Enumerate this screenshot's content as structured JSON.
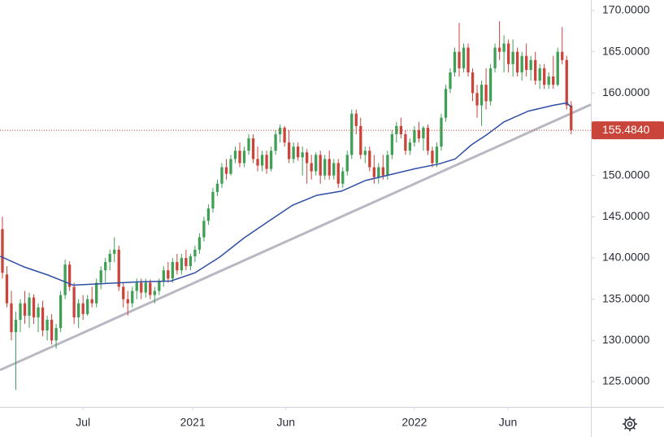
{
  "chart_data": {
    "type": "candlestick",
    "ylim": [
      121.94,
      171.28
    ],
    "xlim": [
      -0.54,
      131.4
    ],
    "yticks": [
      {
        "value": 125,
        "label": "125.0000"
      },
      {
        "value": 130,
        "label": "130.0000"
      },
      {
        "value": 135,
        "label": "135.0000"
      },
      {
        "value": 140,
        "label": "140.0000"
      },
      {
        "value": 145,
        "label": "145.0000"
      },
      {
        "value": 150,
        "label": "150.0000"
      },
      {
        "value": 155,
        "label": "155.0000"
      },
      {
        "value": 160,
        "label": "160.0000"
      },
      {
        "value": 165,
        "label": "165.0000"
      },
      {
        "value": 170,
        "label": "170.0000"
      }
    ],
    "xticks": [
      {
        "value": 18,
        "label": "Jul"
      },
      {
        "value": 42.5,
        "label": "2021"
      },
      {
        "value": 63.3,
        "label": "Jun"
      },
      {
        "value": 92,
        "label": "2022"
      },
      {
        "value": 112.9,
        "label": "Jun"
      }
    ],
    "up_color": "#3f9f55",
    "down_color": "#c9443a",
    "candles": [
      [
        143.5,
        145,
        137.5,
        138.2
      ],
      [
        138,
        139,
        134,
        134.5
      ],
      [
        134.5,
        136,
        130,
        131
      ],
      [
        131,
        133.5,
        124,
        132.5
      ],
      [
        132.5,
        135,
        131,
        134.5
      ],
      [
        134.5,
        136,
        132,
        133
      ],
      [
        133,
        135.8,
        131.5,
        135.2
      ],
      [
        135.2,
        135.6,
        132,
        132.8
      ],
      [
        132.8,
        134.5,
        131,
        134
      ],
      [
        134,
        134.8,
        130.5,
        131.2
      ],
      [
        131.2,
        133,
        130,
        132.5
      ],
      [
        132.5,
        133.2,
        129.5,
        130
      ],
      [
        130,
        132,
        129,
        131.5
      ],
      [
        131.5,
        136,
        131,
        135.5
      ],
      [
        135.5,
        139.8,
        135,
        139.2
      ],
      [
        139.2,
        139.6,
        136,
        136.5
      ],
      [
        136.5,
        137,
        132,
        132.8
      ],
      [
        132.8,
        135,
        131.5,
        134.5
      ],
      [
        134.5,
        135.5,
        132.5,
        133.2
      ],
      [
        133.2,
        135.5,
        133,
        135
      ],
      [
        135,
        136.5,
        134,
        134.5
      ],
      [
        134.5,
        137.5,
        134,
        137
      ],
      [
        137,
        139,
        136.2,
        138.5
      ],
      [
        138.5,
        140,
        137,
        139.5
      ],
      [
        139.5,
        141,
        138.5,
        140.5
      ],
      [
        140.5,
        142.5,
        139.5,
        141
      ],
      [
        141,
        141.5,
        136,
        136.5
      ],
      [
        136.5,
        137,
        134,
        135
      ],
      [
        135,
        136,
        133,
        134.5
      ],
      [
        134.5,
        136.5,
        134,
        136
      ],
      [
        136,
        137.5,
        135,
        137
      ],
      [
        137,
        137.5,
        135,
        135.8
      ],
      [
        135.8,
        137.5,
        135.2,
        137
      ],
      [
        137,
        137.4,
        135,
        135.5
      ],
      [
        135.5,
        136.5,
        134.5,
        136
      ],
      [
        136,
        137.5,
        135.5,
        137.2
      ],
      [
        137.2,
        139,
        136.5,
        138.5
      ],
      [
        138.5,
        139.5,
        137,
        137.5
      ],
      [
        137.5,
        140,
        137,
        139.5
      ],
      [
        139.5,
        140.5,
        138,
        138.5
      ],
      [
        138.5,
        140.5,
        138,
        140
      ],
      [
        140,
        141,
        138.5,
        139
      ],
      [
        139,
        140.5,
        138.5,
        140.2
      ],
      [
        140.2,
        141.5,
        139.5,
        141
      ],
      [
        141,
        143,
        140.5,
        142.5
      ],
      [
        142.5,
        145,
        142,
        144.5
      ],
      [
        144.5,
        146.5,
        144,
        146
      ],
      [
        146,
        148.5,
        145.5,
        148
      ],
      [
        148,
        149.5,
        147.5,
        149
      ],
      [
        149,
        151.5,
        148.5,
        151
      ],
      [
        151,
        152,
        149.5,
        150.2
      ],
      [
        150.2,
        152.5,
        150,
        152
      ],
      [
        152,
        153.5,
        151.5,
        153
      ],
      [
        153,
        154,
        151,
        151.5
      ],
      [
        151.5,
        153.5,
        151,
        153
      ],
      [
        153,
        155,
        152.5,
        154.5
      ],
      [
        154.5,
        155,
        151.5,
        152
      ],
      [
        152,
        153.5,
        150.5,
        151.2
      ],
      [
        151.2,
        153,
        150.5,
        152.5
      ],
      [
        152.5,
        153,
        150.2,
        150.8
      ],
      [
        150.8,
        153.5,
        150.5,
        153
      ],
      [
        153,
        155.5,
        152.5,
        155
      ],
      [
        155,
        156.2,
        154,
        155.8
      ],
      [
        155.8,
        156,
        153.5,
        154
      ],
      [
        154,
        155.5,
        151.5,
        152
      ],
      [
        152,
        154,
        151.5,
        153.5
      ],
      [
        153.5,
        154,
        151.8,
        152.2
      ],
      [
        152.2,
        153.5,
        150,
        152.8
      ],
      [
        152.8,
        153.2,
        149,
        151.5
      ],
      [
        151.5,
        152.5,
        149.5,
        150.5
      ],
      [
        150.5,
        152.8,
        150,
        152.5
      ],
      [
        152.5,
        153,
        149,
        150
      ],
      [
        150,
        152.5,
        149.5,
        152
      ],
      [
        152,
        153,
        149.5,
        150
      ],
      [
        150,
        152,
        149.5,
        151.5
      ],
      [
        151.5,
        152,
        148.5,
        149
      ],
      [
        149,
        151,
        148.5,
        150.5
      ],
      [
        150.5,
        153,
        150,
        152.5
      ],
      [
        152.5,
        158,
        152,
        157.5
      ],
      [
        157.5,
        158,
        155,
        156
      ],
      [
        156,
        157,
        152,
        152.5
      ],
      [
        152.5,
        153.5,
        151.5,
        153
      ],
      [
        153,
        153.5,
        150.5,
        151
      ],
      [
        151,
        152.5,
        149,
        149.8
      ],
      [
        149.8,
        151.5,
        149,
        151
      ],
      [
        151,
        152.5,
        149.5,
        150
      ],
      [
        150,
        153,
        149.5,
        152.5
      ],
      [
        152.5,
        155.5,
        152,
        155
      ],
      [
        155,
        156.5,
        154,
        156
      ],
      [
        156,
        157,
        154.5,
        155
      ],
      [
        155,
        155.5,
        152.5,
        153
      ],
      [
        153,
        154.5,
        152.5,
        154
      ],
      [
        154,
        156,
        153.5,
        155.5
      ],
      [
        155.5,
        156.5,
        154,
        154.5
      ],
      [
        154.5,
        156,
        153,
        155.8
      ],
      [
        155.8,
        156.2,
        152.5,
        153
      ],
      [
        153,
        153.5,
        151,
        151.5
      ],
      [
        151.5,
        154,
        151,
        153.5
      ],
      [
        153.5,
        157.5,
        153,
        157
      ],
      [
        157,
        161,
        156.5,
        160.5
      ],
      [
        160.5,
        163,
        160,
        162.5
      ],
      [
        162.5,
        165.5,
        162,
        165
      ],
      [
        165,
        168.5,
        162,
        163
      ],
      [
        163,
        166,
        162.5,
        165.5
      ],
      [
        165.5,
        166,
        162,
        162.5
      ],
      [
        162.5,
        163,
        159,
        160
      ],
      [
        160,
        161,
        157,
        158.5
      ],
      [
        158.5,
        161.5,
        156,
        161
      ],
      [
        161,
        163,
        158,
        159
      ],
      [
        159,
        163.5,
        158.5,
        163
      ],
      [
        163,
        166,
        162.5,
        165.5
      ],
      [
        165.5,
        168.7,
        164,
        165
      ],
      [
        165,
        167,
        162.5,
        166
      ],
      [
        166,
        166.5,
        162.5,
        163.5
      ],
      [
        163.5,
        166.5,
        162,
        165
      ],
      [
        165,
        165.5,
        162,
        162.5
      ],
      [
        162.5,
        165,
        161.5,
        164.5
      ],
      [
        164.5,
        166,
        162,
        162.8
      ],
      [
        162.8,
        164.5,
        161.5,
        164
      ],
      [
        164,
        165,
        161,
        161.5
      ],
      [
        161.5,
        163.5,
        160.5,
        163
      ],
      [
        163,
        163.5,
        160.5,
        161
      ],
      [
        161,
        162.5,
        160.5,
        162
      ],
      [
        162,
        164.5,
        160.5,
        161
      ],
      [
        161,
        165.5,
        160.8,
        165
      ],
      [
        165,
        168,
        163.5,
        164
      ],
      [
        164,
        164.5,
        158,
        158.5
      ],
      [
        158.5,
        159,
        155,
        155.484
      ]
    ],
    "ma": {
      "color": "#2f4ea6",
      "x": [
        -0.5,
        4.9,
        10.3,
        15.8,
        23,
        30.3,
        37.6,
        43,
        48.5,
        53.9,
        59.3,
        64.8,
        70.2,
        75.7,
        81.1,
        86.6,
        92,
        97.5,
        101.1,
        104.7,
        108.3,
        112,
        117.4,
        122.9,
        126,
        127
      ],
      "values": [
        140.2,
        138.9,
        137.9,
        136.7,
        136.9,
        137.1,
        137.2,
        138.2,
        140.1,
        142.4,
        144.4,
        146.4,
        147.6,
        148.1,
        149.4,
        150.1,
        150.8,
        151.4,
        152,
        153.7,
        155,
        156.5,
        157.8,
        158.5,
        158.8,
        158.3
      ]
    },
    "trendline": {
      "color": "#b9b8c2",
      "x": [
        -0.54,
        131.4
      ],
      "values": [
        126.4,
        158.6
      ]
    },
    "last_price": {
      "value": 155.484,
      "label": "155.4840",
      "color": "#c9443a"
    }
  }
}
